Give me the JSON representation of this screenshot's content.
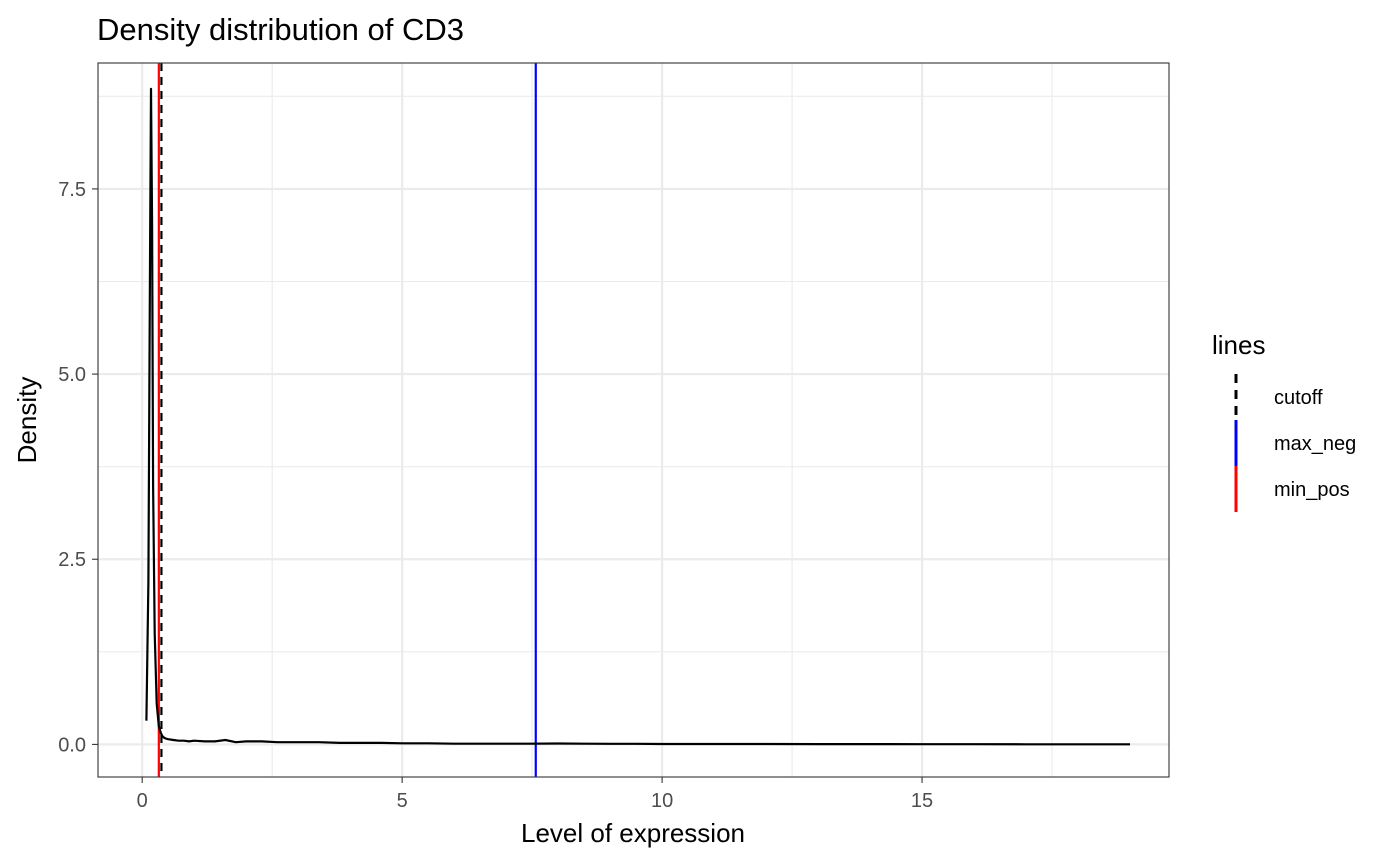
{
  "chart_data": {
    "type": "line",
    "title": "Density distribution of CD3",
    "xlabel": "Level of expression",
    "ylabel": "Density",
    "xlim": [
      -0.85,
      19.75
    ],
    "ylim": [
      -0.44,
      9.2
    ],
    "x_ticks": [
      0,
      5,
      10,
      15
    ],
    "x_tick_labels": [
      "0",
      "5",
      "10",
      "15"
    ],
    "x_minor_ticks": [
      2.5,
      7.5,
      12.5,
      17.5
    ],
    "y_ticks": [
      0,
      2.5,
      5,
      7.5
    ],
    "y_tick_labels": [
      "0.0",
      "2.5",
      "5.0",
      "7.5"
    ],
    "y_minor_ticks": [
      1.25,
      3.75,
      6.25,
      8.75
    ],
    "grid": true,
    "legend": {
      "title": "lines",
      "position": "right",
      "entries": [
        {
          "name": "cutoff",
          "color": "#000000",
          "style": "dashed"
        },
        {
          "name": "max_neg",
          "color": "#0000ff",
          "style": "solid"
        },
        {
          "name": "min_pos",
          "color": "#ff0000",
          "style": "solid"
        }
      ]
    },
    "vlines": [
      {
        "name": "cutoff",
        "x": 0.37,
        "color": "#000000",
        "style": "dashed"
      },
      {
        "name": "max_neg",
        "x": 7.57,
        "color": "#0000ff",
        "style": "solid"
      },
      {
        "name": "min_pos",
        "x": 0.32,
        "color": "#ff0000",
        "style": "solid"
      }
    ],
    "series": [
      {
        "color": "#000000",
        "x": [
          0.08,
          0.12,
          0.15,
          0.17,
          0.19,
          0.21,
          0.24,
          0.28,
          0.32,
          0.36,
          0.4,
          0.45,
          0.5,
          0.6,
          0.7,
          0.8,
          0.9,
          1.0,
          1.2,
          1.4,
          1.6,
          1.8,
          2.0,
          2.3,
          2.6,
          3.0,
          3.4,
          3.8,
          4.2,
          4.6,
          5.0,
          5.5,
          6.0,
          6.5,
          7.0,
          7.5,
          8.0,
          8.5,
          9.0,
          9.5,
          10.0,
          11.0,
          12.0,
          13.0,
          14.0,
          15.0,
          16.0,
          17.0,
          18.0,
          19.0
        ],
        "y": [
          0.32,
          2.2,
          6.5,
          8.85,
          7.0,
          3.5,
          1.5,
          0.55,
          0.25,
          0.15,
          0.1,
          0.08,
          0.07,
          0.06,
          0.05,
          0.05,
          0.04,
          0.05,
          0.04,
          0.04,
          0.06,
          0.03,
          0.04,
          0.04,
          0.03,
          0.03,
          0.03,
          0.02,
          0.02,
          0.02,
          0.015,
          0.015,
          0.01,
          0.01,
          0.01,
          0.01,
          0.012,
          0.01,
          0.008,
          0.008,
          0.006,
          0.005,
          0.005,
          0.004,
          0.004,
          0.003,
          0.003,
          0.002,
          0.002,
          0.002
        ]
      }
    ]
  }
}
